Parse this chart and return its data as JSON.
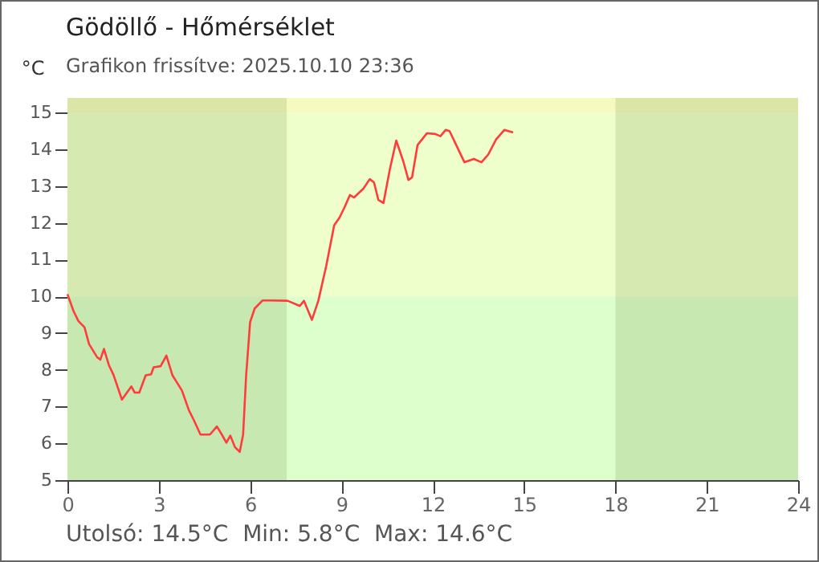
{
  "chart_data": {
    "type": "line",
    "title": "Gödöllő - Hőmérséklet",
    "subtitle": "Grafikon frissítve: 2025.10.10 23:36",
    "ylabel": "°C",
    "annotations": [
      "Utolsó: 14.5°C  Min: 5.8°C  Max: 14.6°C"
    ],
    "series": [
      {
        "color": "#ff3b3b",
        "x": [
          0,
          0.2,
          0.36,
          0.56,
          0.71,
          0.97,
          1.08,
          1.2,
          1.36,
          1.51,
          1.79,
          2.1,
          2.21,
          2.36,
          2.57,
          2.75,
          2.83,
          3.06,
          3.25,
          3.45,
          3.76,
          3.99,
          4.17,
          4.37,
          4.68,
          4.91,
          5.07,
          5.22,
          5.35,
          5.5,
          5.66,
          5.77,
          5.87,
          6.0,
          6.15,
          6.41,
          6.69,
          7.23,
          7.63,
          7.77,
          8.03,
          8.24,
          8.5,
          8.76,
          8.94,
          9.11,
          9.28,
          9.41,
          9.72,
          9.93,
          10.07,
          10.21,
          10.38,
          10.59,
          10.8,
          11.03,
          11.2,
          11.32,
          11.5,
          11.81,
          12.08,
          12.25,
          12.42,
          12.55,
          12.77,
          13.04,
          13.35,
          13.6,
          13.82,
          14.08,
          14.35,
          14.64
        ],
        "values": [
          10.06,
          9.6,
          9.33,
          9.16,
          8.7,
          8.35,
          8.28,
          8.57,
          8.13,
          7.87,
          7.19,
          7.55,
          7.38,
          7.38,
          7.85,
          7.88,
          8.07,
          8.1,
          8.39,
          7.85,
          7.44,
          6.9,
          6.6,
          6.24,
          6.24,
          6.46,
          6.24,
          6.02,
          6.21,
          5.9,
          5.77,
          6.24,
          7.85,
          9.3,
          9.67,
          9.89,
          9.89,
          9.88,
          9.74,
          9.88,
          9.36,
          9.88,
          10.83,
          11.93,
          12.15,
          12.44,
          12.76,
          12.69,
          12.93,
          13.19,
          13.1,
          12.63,
          12.54,
          13.46,
          14.24,
          13.68,
          13.17,
          13.24,
          14.12,
          14.44,
          14.42,
          14.36,
          14.53,
          14.5,
          14.12,
          13.65,
          13.74,
          13.65,
          13.86,
          14.27,
          14.53,
          14.46
        ]
      }
    ],
    "xlim": [
      0,
      24
    ],
    "xticks": [
      0,
      3,
      6,
      9,
      12,
      15,
      18,
      21,
      24
    ],
    "ylim": [
      5,
      15.4
    ],
    "yticks": [
      5,
      6,
      7,
      8,
      9,
      10,
      11,
      12,
      13,
      14,
      15
    ],
    "bands": [
      {
        "axis": "y",
        "from": 5,
        "to": 10,
        "color": "#ddffcc"
      },
      {
        "axis": "y",
        "from": 10,
        "to": 15,
        "color": "#eeffcc"
      },
      {
        "axis": "y",
        "from": 15,
        "to": 15.4,
        "color": "#f5fbbf"
      },
      {
        "axis": "x",
        "from": 0,
        "to": 7.2,
        "color": "#4d6b1a"
      },
      {
        "axis": "x",
        "from": 18,
        "to": 24,
        "color": "#4d6b1a"
      }
    ],
    "grid": false,
    "marker": "none",
    "line_style": "solid"
  }
}
